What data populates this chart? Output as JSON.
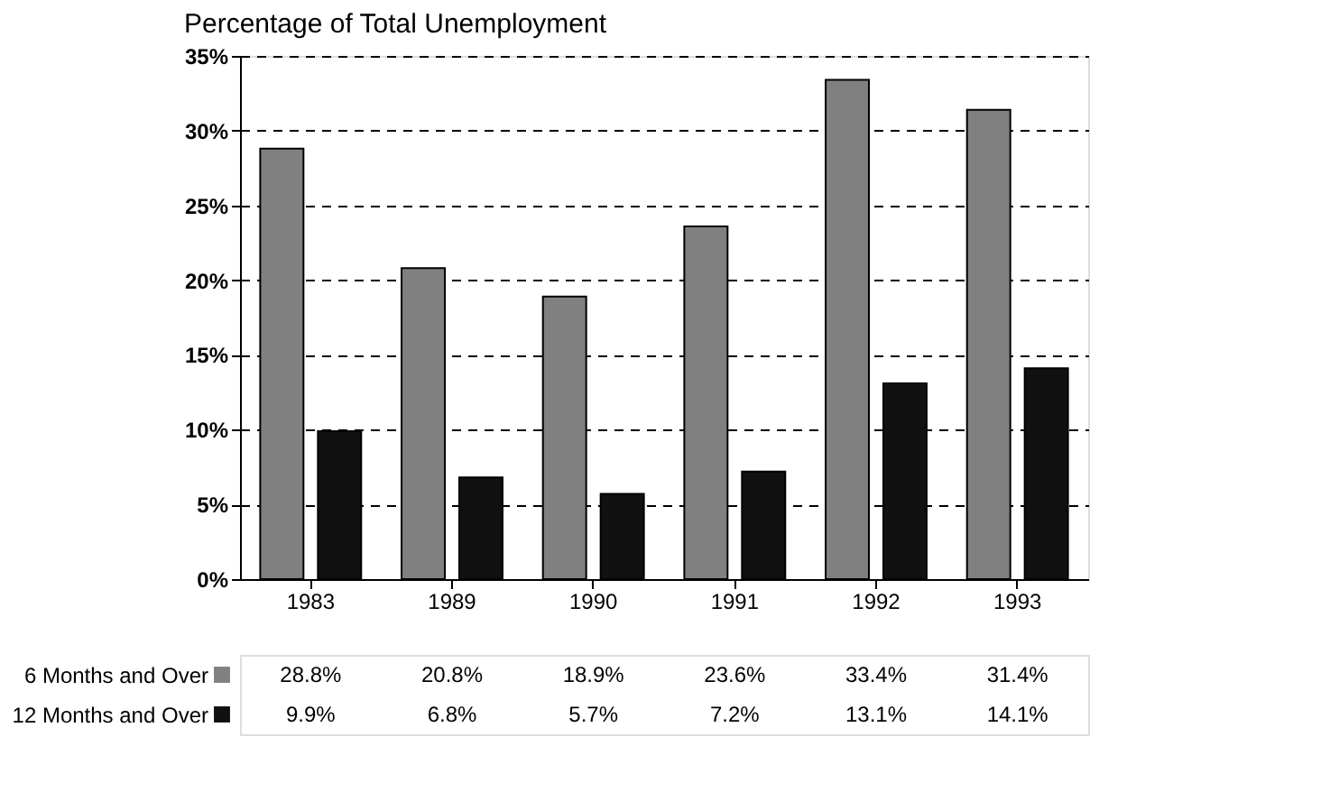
{
  "chart_data": {
    "type": "bar",
    "title": "Percentage of Total Unemployment",
    "categories": [
      "1983",
      "1989",
      "1990",
      "1991",
      "1992",
      "1993"
    ],
    "series": [
      {
        "name": "6 Months and Over",
        "color": "#808080",
        "values": [
          28.8,
          20.8,
          18.9,
          23.6,
          33.4,
          31.4
        ],
        "value_labels": [
          "28.8%",
          "20.8%",
          "18.9%",
          "23.6%",
          "33.4%",
          "31.4%"
        ]
      },
      {
        "name": "12 Months and Over",
        "color": "#111111",
        "values": [
          9.9,
          6.8,
          5.7,
          7.2,
          13.1,
          14.1
        ],
        "value_labels": [
          "9.9%",
          "6.8%",
          "5.7%",
          "7.2%",
          "13.1%",
          "14.1%"
        ]
      }
    ],
    "ylim": [
      0,
      35
    ],
    "yticks": [
      {
        "value": 0,
        "label": "0%"
      },
      {
        "value": 5,
        "label": "5%"
      },
      {
        "value": 10,
        "label": "10%"
      },
      {
        "value": 15,
        "label": "15%"
      },
      {
        "value": 20,
        "label": "20%"
      },
      {
        "value": 25,
        "label": "25%"
      },
      {
        "value": 30,
        "label": "30%"
      },
      {
        "value": 35,
        "label": "35%"
      }
    ],
    "grid": "y",
    "legend": "bottom"
  }
}
